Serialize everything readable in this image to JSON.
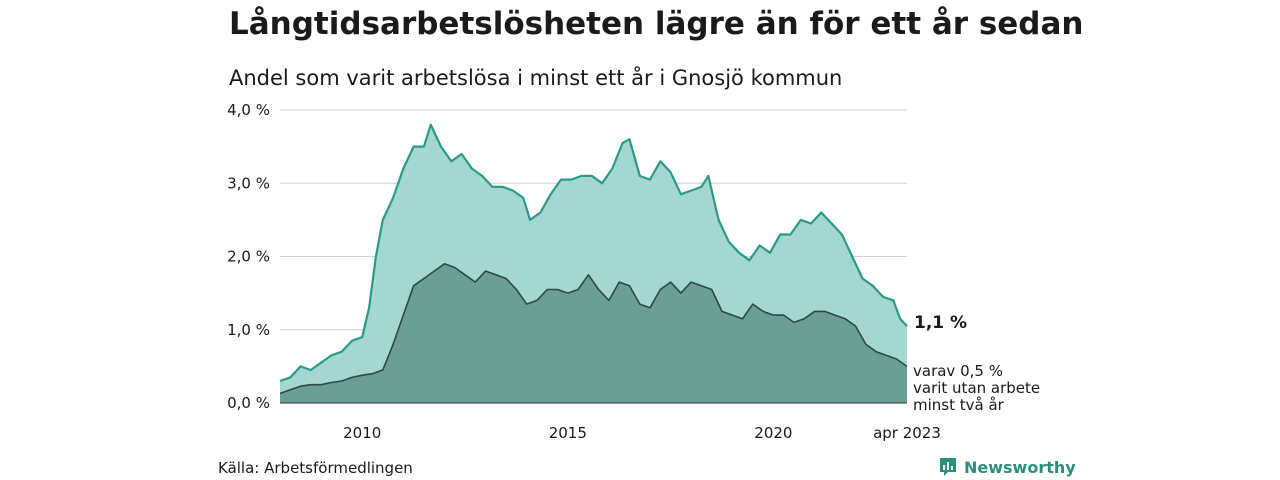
{
  "header": {
    "title": "Långtidsarbetslösheten lägre än för ett år sedan",
    "subtitle": "Andel som varit arbetslösa i minst ett år i Gnosjö kommun"
  },
  "footer": {
    "source": "Källa: Arbetsförmedlingen",
    "brand": "Newsworthy"
  },
  "colors": {
    "total_fill": "#a3d7cf",
    "total_line": "#2a9a88",
    "long_fill": "#6b9f95",
    "long_line": "#2b4a44",
    "grid": "#d0d0d0",
    "brand": "#2a8f7f"
  },
  "chart_data": {
    "type": "area",
    "x_range": [
      "2008-01",
      "2023-04"
    ],
    "ylim": [
      0,
      4.0
    ],
    "y_ticks": [
      "0,0 %",
      "1,0 %",
      "2,0 %",
      "3,0 %",
      "4,0 %"
    ],
    "x_ticks": [
      {
        "x": "2010-01",
        "label": "2010"
      },
      {
        "x": "2015-01",
        "label": "2015"
      },
      {
        "x": "2020-01",
        "label": "2020"
      },
      {
        "x": "2023-04",
        "label": "apr 2023"
      }
    ],
    "grid": true,
    "series": [
      {
        "id": "total",
        "points": [
          [
            "2008-01",
            0.3
          ],
          [
            "2008-04",
            0.35
          ],
          [
            "2008-07",
            0.5
          ],
          [
            "2008-10",
            0.45
          ],
          [
            "2009-01",
            0.55
          ],
          [
            "2009-04",
            0.65
          ],
          [
            "2009-07",
            0.7
          ],
          [
            "2009-10",
            0.85
          ],
          [
            "2010-01",
            0.9
          ],
          [
            "2010-03",
            1.3
          ],
          [
            "2010-05",
            2.0
          ],
          [
            "2010-07",
            2.5
          ],
          [
            "2010-10",
            2.8
          ],
          [
            "2011-01",
            3.2
          ],
          [
            "2011-04",
            3.5
          ],
          [
            "2011-07",
            3.5
          ],
          [
            "2011-09",
            3.8
          ],
          [
            "2011-12",
            3.5
          ],
          [
            "2012-03",
            3.3
          ],
          [
            "2012-06",
            3.4
          ],
          [
            "2012-09",
            3.2
          ],
          [
            "2012-12",
            3.1
          ],
          [
            "2013-03",
            2.95
          ],
          [
            "2013-06",
            2.95
          ],
          [
            "2013-09",
            2.9
          ],
          [
            "2013-12",
            2.8
          ],
          [
            "2014-02",
            2.5
          ],
          [
            "2014-05",
            2.6
          ],
          [
            "2014-08",
            2.85
          ],
          [
            "2014-11",
            3.05
          ],
          [
            "2015-02",
            3.05
          ],
          [
            "2015-05",
            3.1
          ],
          [
            "2015-08",
            3.1
          ],
          [
            "2015-11",
            3.0
          ],
          [
            "2016-02",
            3.2
          ],
          [
            "2016-05",
            3.55
          ],
          [
            "2016-07",
            3.6
          ],
          [
            "2016-10",
            3.1
          ],
          [
            "2017-01",
            3.05
          ],
          [
            "2017-04",
            3.3
          ],
          [
            "2017-07",
            3.15
          ],
          [
            "2017-10",
            2.85
          ],
          [
            "2018-01",
            2.9
          ],
          [
            "2018-04",
            2.95
          ],
          [
            "2018-06",
            3.1
          ],
          [
            "2018-09",
            2.5
          ],
          [
            "2018-12",
            2.2
          ],
          [
            "2019-03",
            2.05
          ],
          [
            "2019-06",
            1.95
          ],
          [
            "2019-09",
            2.15
          ],
          [
            "2019-12",
            2.05
          ],
          [
            "2020-03",
            2.3
          ],
          [
            "2020-06",
            2.3
          ],
          [
            "2020-09",
            2.5
          ],
          [
            "2020-12",
            2.45
          ],
          [
            "2021-03",
            2.6
          ],
          [
            "2021-06",
            2.45
          ],
          [
            "2021-09",
            2.3
          ],
          [
            "2021-12",
            2.0
          ],
          [
            "2022-03",
            1.7
          ],
          [
            "2022-06",
            1.6
          ],
          [
            "2022-09",
            1.45
          ],
          [
            "2022-12",
            1.4
          ],
          [
            "2023-02",
            1.15
          ],
          [
            "2023-04",
            1.05
          ]
        ]
      },
      {
        "id": "long",
        "points": [
          [
            "2008-01",
            0.13
          ],
          [
            "2008-04",
            0.18
          ],
          [
            "2008-07",
            0.23
          ],
          [
            "2008-10",
            0.25
          ],
          [
            "2009-01",
            0.25
          ],
          [
            "2009-04",
            0.28
          ],
          [
            "2009-07",
            0.3
          ],
          [
            "2009-10",
            0.35
          ],
          [
            "2010-01",
            0.38
          ],
          [
            "2010-04",
            0.4
          ],
          [
            "2010-07",
            0.45
          ],
          [
            "2010-10",
            0.8
          ],
          [
            "2011-01",
            1.2
          ],
          [
            "2011-04",
            1.6
          ],
          [
            "2011-07",
            1.7
          ],
          [
            "2011-10",
            1.8
          ],
          [
            "2012-01",
            1.9
          ],
          [
            "2012-04",
            1.85
          ],
          [
            "2012-07",
            1.75
          ],
          [
            "2012-10",
            1.65
          ],
          [
            "2013-01",
            1.8
          ],
          [
            "2013-04",
            1.75
          ],
          [
            "2013-07",
            1.7
          ],
          [
            "2013-10",
            1.55
          ],
          [
            "2014-01",
            1.35
          ],
          [
            "2014-04",
            1.4
          ],
          [
            "2014-07",
            1.55
          ],
          [
            "2014-10",
            1.55
          ],
          [
            "2015-01",
            1.5
          ],
          [
            "2015-04",
            1.55
          ],
          [
            "2015-07",
            1.75
          ],
          [
            "2015-10",
            1.55
          ],
          [
            "2016-01",
            1.4
          ],
          [
            "2016-04",
            1.65
          ],
          [
            "2016-07",
            1.6
          ],
          [
            "2016-10",
            1.35
          ],
          [
            "2017-01",
            1.3
          ],
          [
            "2017-04",
            1.55
          ],
          [
            "2017-07",
            1.65
          ],
          [
            "2017-10",
            1.5
          ],
          [
            "2018-01",
            1.65
          ],
          [
            "2018-04",
            1.6
          ],
          [
            "2018-07",
            1.55
          ],
          [
            "2018-10",
            1.25
          ],
          [
            "2019-01",
            1.2
          ],
          [
            "2019-04",
            1.15
          ],
          [
            "2019-07",
            1.35
          ],
          [
            "2019-10",
            1.25
          ],
          [
            "2020-01",
            1.2
          ],
          [
            "2020-04",
            1.2
          ],
          [
            "2020-07",
            1.1
          ],
          [
            "2020-10",
            1.15
          ],
          [
            "2021-01",
            1.25
          ],
          [
            "2021-04",
            1.25
          ],
          [
            "2021-07",
            1.2
          ],
          [
            "2021-10",
            1.15
          ],
          [
            "2022-01",
            1.05
          ],
          [
            "2022-04",
            0.8
          ],
          [
            "2022-07",
            0.7
          ],
          [
            "2022-10",
            0.65
          ],
          [
            "2023-01",
            0.6
          ],
          [
            "2023-04",
            0.5
          ]
        ]
      }
    ],
    "end_labels": {
      "total": "1,1 %",
      "long_lines": [
        "varav 0,5 %",
        "varit utan arbete",
        "minst två år"
      ]
    }
  }
}
